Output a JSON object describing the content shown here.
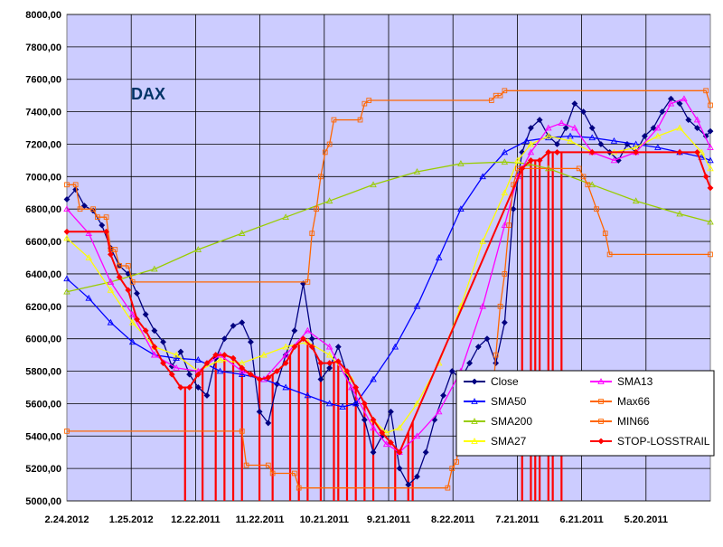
{
  "chart_data": {
    "type": "line",
    "title": "DAX",
    "ylim": [
      5000,
      8000
    ],
    "y_ticks": [
      "8000,00",
      "7800,00",
      "7600,00",
      "7400,00",
      "7200,00",
      "7000,00",
      "6800,00",
      "6600,00",
      "6400,00",
      "6200,00",
      "6000,00",
      "5800,00",
      "5600,00",
      "5400,00",
      "5200,00",
      "5000,00"
    ],
    "x_ticks": [
      "2.24.2012",
      "1.25.2012",
      "12.22.2011",
      "11.22.2011",
      "10.21.2011",
      "9.21.2011",
      "8.22.2011",
      "7.21.2011",
      "6.21.2011",
      "5.20.2011"
    ],
    "x_direction": "reversed (newest on the left)",
    "grid": true,
    "legend_position": "bottom-right",
    "colors": {
      "background": "#ffffff",
      "plot_bg": "#ccccff",
      "Close": "#000080",
      "SMA50": "#0000ff",
      "MIN66": "#ff6600",
      "SMA200": "#99cc00",
      "SMA27": "#ffff00",
      "Max66": "#ff6600",
      "STOP-LOSSTRAIL": "#ff0000",
      "SMA13": "#ff00ff"
    },
    "series": [
      {
        "name": "Close",
        "marker": "diamond",
        "points": [
          [
            0,
            6860
          ],
          [
            2,
            6920
          ],
          [
            4,
            6820
          ],
          [
            6,
            6790
          ],
          [
            8,
            6700
          ],
          [
            10,
            6560
          ],
          [
            12,
            6450
          ],
          [
            14,
            6400
          ],
          [
            16,
            6280
          ],
          [
            18,
            6150
          ],
          [
            20,
            6050
          ],
          [
            22,
            5980
          ],
          [
            24,
            5830
          ],
          [
            26,
            5920
          ],
          [
            28,
            5780
          ],
          [
            30,
            5700
          ],
          [
            32,
            5650
          ],
          [
            34,
            5880
          ],
          [
            36,
            6000
          ],
          [
            38,
            6080
          ],
          [
            40,
            6100
          ],
          [
            42,
            5980
          ],
          [
            44,
            5550
          ],
          [
            46,
            5480
          ],
          [
            48,
            5720
          ],
          [
            50,
            5900
          ],
          [
            52,
            6050
          ],
          [
            54,
            6340
          ],
          [
            56,
            6000
          ],
          [
            58,
            5750
          ],
          [
            60,
            5820
          ],
          [
            62,
            5950
          ],
          [
            64,
            5780
          ],
          [
            66,
            5600
          ],
          [
            68,
            5500
          ],
          [
            70,
            5300
          ],
          [
            72,
            5400
          ],
          [
            74,
            5550
          ],
          [
            76,
            5200
          ],
          [
            78,
            5100
          ],
          [
            80,
            5150
          ],
          [
            82,
            5300
          ],
          [
            84,
            5500
          ],
          [
            86,
            5650
          ],
          [
            88,
            5800
          ],
          [
            90,
            5750
          ],
          [
            92,
            5850
          ],
          [
            94,
            5950
          ],
          [
            96,
            6000
          ],
          [
            98,
            5850
          ],
          [
            100,
            6100
          ],
          [
            102,
            6800
          ],
          [
            104,
            7150
          ],
          [
            106,
            7300
          ],
          [
            108,
            7350
          ],
          [
            110,
            7250
          ],
          [
            112,
            7200
          ],
          [
            114,
            7300
          ],
          [
            116,
            7450
          ],
          [
            118,
            7400
          ],
          [
            120,
            7300
          ],
          [
            122,
            7200
          ],
          [
            124,
            7150
          ],
          [
            126,
            7100
          ],
          [
            128,
            7200
          ],
          [
            130,
            7150
          ],
          [
            132,
            7250
          ],
          [
            134,
            7300
          ],
          [
            136,
            7400
          ],
          [
            138,
            7480
          ],
          [
            140,
            7450
          ],
          [
            142,
            7350
          ],
          [
            144,
            7300
          ],
          [
            146,
            7250
          ],
          [
            147,
            7280
          ]
        ]
      },
      {
        "name": "SMA50",
        "marker": "triangle",
        "points": [
          [
            0,
            6370
          ],
          [
            5,
            6250
          ],
          [
            10,
            6100
          ],
          [
            15,
            5980
          ],
          [
            20,
            5900
          ],
          [
            25,
            5880
          ],
          [
            30,
            5870
          ],
          [
            35,
            5800
          ],
          [
            40,
            5780
          ],
          [
            45,
            5750
          ],
          [
            50,
            5700
          ],
          [
            55,
            5650
          ],
          [
            60,
            5600
          ],
          [
            63,
            5580
          ],
          [
            66,
            5600
          ],
          [
            70,
            5750
          ],
          [
            75,
            5950
          ],
          [
            80,
            6200
          ],
          [
            85,
            6500
          ],
          [
            90,
            6800
          ],
          [
            95,
            7000
          ],
          [
            100,
            7150
          ],
          [
            105,
            7220
          ],
          [
            110,
            7240
          ],
          [
            115,
            7250
          ],
          [
            120,
            7240
          ],
          [
            125,
            7220
          ],
          [
            130,
            7200
          ],
          [
            135,
            7180
          ],
          [
            140,
            7150
          ],
          [
            145,
            7120
          ],
          [
            147,
            7100
          ]
        ]
      },
      {
        "name": "SMA200",
        "marker": "triangle",
        "points": [
          [
            0,
            6290
          ],
          [
            10,
            6350
          ],
          [
            20,
            6430
          ],
          [
            30,
            6550
          ],
          [
            40,
            6650
          ],
          [
            50,
            6750
          ],
          [
            60,
            6850
          ],
          [
            70,
            6950
          ],
          [
            80,
            7030
          ],
          [
            90,
            7080
          ],
          [
            100,
            7090
          ],
          [
            105,
            7080
          ],
          [
            110,
            7050
          ],
          [
            120,
            6950
          ],
          [
            130,
            6850
          ],
          [
            140,
            6770
          ],
          [
            147,
            6720
          ]
        ]
      },
      {
        "name": "SMA27",
        "marker": "triangle",
        "points": [
          [
            0,
            6620
          ],
          [
            5,
            6500
          ],
          [
            10,
            6300
          ],
          [
            15,
            6100
          ],
          [
            20,
            5950
          ],
          [
            25,
            5900
          ],
          [
            30,
            5800
          ],
          [
            35,
            5870
          ],
          [
            40,
            5850
          ],
          [
            45,
            5900
          ],
          [
            50,
            5950
          ],
          [
            55,
            5980
          ],
          [
            60,
            5900
          ],
          [
            65,
            5750
          ],
          [
            70,
            5500
          ],
          [
            73,
            5420
          ],
          [
            76,
            5450
          ],
          [
            80,
            5600
          ],
          [
            85,
            5850
          ],
          [
            90,
            6200
          ],
          [
            95,
            6600
          ],
          [
            100,
            6900
          ],
          [
            103,
            7100
          ],
          [
            106,
            7200
          ],
          [
            110,
            7250
          ],
          [
            115,
            7220
          ],
          [
            120,
            7150
          ],
          [
            125,
            7150
          ],
          [
            130,
            7180
          ],
          [
            135,
            7250
          ],
          [
            140,
            7300
          ],
          [
            145,
            7150
          ],
          [
            147,
            7050
          ]
        ]
      },
      {
        "name": "SMA13",
        "marker": "triangle",
        "points": [
          [
            0,
            6800
          ],
          [
            5,
            6650
          ],
          [
            10,
            6350
          ],
          [
            15,
            6150
          ],
          [
            20,
            5900
          ],
          [
            25,
            5820
          ],
          [
            30,
            5800
          ],
          [
            35,
            5900
          ],
          [
            40,
            5800
          ],
          [
            45,
            5750
          ],
          [
            50,
            5900
          ],
          [
            55,
            6050
          ],
          [
            60,
            5950
          ],
          [
            65,
            5700
          ],
          [
            70,
            5450
          ],
          [
            73,
            5350
          ],
          [
            76,
            5300
          ],
          [
            80,
            5400
          ],
          [
            85,
            5550
          ],
          [
            90,
            5800
          ],
          [
            95,
            6200
          ],
          [
            100,
            6700
          ],
          [
            103,
            7000
          ],
          [
            106,
            7150
          ],
          [
            110,
            7300
          ],
          [
            113,
            7330
          ],
          [
            116,
            7300
          ],
          [
            120,
            7150
          ],
          [
            125,
            7100
          ],
          [
            130,
            7150
          ],
          [
            135,
            7300
          ],
          [
            138,
            7450
          ],
          [
            141,
            7480
          ],
          [
            144,
            7350
          ],
          [
            147,
            7180
          ]
        ]
      },
      {
        "name": "Max66",
        "marker": "square",
        "points": [
          [
            0,
            6950
          ],
          [
            2,
            6950
          ],
          [
            3,
            6800
          ],
          [
            6,
            6800
          ],
          [
            7,
            6750
          ],
          [
            9,
            6750
          ],
          [
            10,
            6550
          ],
          [
            11,
            6550
          ],
          [
            12,
            6450
          ],
          [
            14,
            6450
          ],
          [
            15,
            6350
          ],
          [
            55,
            6350
          ],
          [
            56,
            6650
          ],
          [
            57,
            6800
          ],
          [
            58,
            7000
          ],
          [
            59,
            7150
          ],
          [
            60,
            7200
          ],
          [
            61,
            7350
          ],
          [
            67,
            7350
          ],
          [
            68,
            7450
          ],
          [
            69,
            7470
          ],
          [
            97,
            7470
          ],
          [
            98,
            7500
          ],
          [
            99,
            7500
          ],
          [
            100,
            7530
          ],
          [
            146,
            7530
          ],
          [
            147,
            7440
          ]
        ]
      },
      {
        "name": "MIN66",
        "marker": "square",
        "points": [
          [
            0,
            5430
          ],
          [
            40,
            5430
          ],
          [
            41,
            5220
          ],
          [
            46,
            5220
          ],
          [
            47,
            5170
          ],
          [
            52,
            5170
          ],
          [
            53,
            5080
          ],
          [
            87,
            5080
          ],
          [
            88,
            5200
          ],
          [
            89,
            5240
          ],
          [
            90,
            5480
          ],
          [
            96,
            5480
          ],
          [
            97,
            5550
          ],
          [
            98,
            5900
          ],
          [
            99,
            6200
          ],
          [
            100,
            6400
          ],
          [
            101,
            6700
          ],
          [
            102,
            6950
          ],
          [
            103,
            7050
          ],
          [
            117,
            7050
          ],
          [
            118,
            7000
          ],
          [
            119,
            6950
          ],
          [
            121,
            6800
          ],
          [
            123,
            6650
          ],
          [
            124,
            6520
          ],
          [
            147,
            6520
          ]
        ]
      },
      {
        "name": "STOP-LOSSTRAIL",
        "marker": "diamond",
        "points": [
          [
            0,
            6660
          ],
          [
            9,
            6660
          ],
          [
            10,
            6520
          ],
          [
            12,
            6380
          ],
          [
            14,
            6300
          ],
          [
            16,
            6120
          ],
          [
            18,
            6050
          ],
          [
            20,
            5950
          ],
          [
            22,
            5850
          ],
          [
            24,
            5780
          ],
          [
            26,
            5700
          ],
          [
            28,
            5700
          ],
          [
            30,
            5780
          ],
          [
            32,
            5850
          ],
          [
            34,
            5900
          ],
          [
            36,
            5900
          ],
          [
            38,
            5880
          ],
          [
            40,
            5820
          ],
          [
            42,
            5780
          ],
          [
            44,
            5750
          ],
          [
            46,
            5760
          ],
          [
            48,
            5800
          ],
          [
            50,
            5850
          ],
          [
            52,
            5950
          ],
          [
            54,
            6000
          ],
          [
            56,
            5950
          ],
          [
            58,
            5850
          ],
          [
            60,
            5850
          ],
          [
            62,
            5860
          ],
          [
            64,
            5800
          ],
          [
            66,
            5700
          ],
          [
            68,
            5600
          ],
          [
            70,
            5500
          ],
          [
            72,
            5420
          ],
          [
            74,
            5360
          ],
          [
            76,
            5300
          ],
          [
            104,
            7050
          ],
          [
            106,
            7100
          ],
          [
            108,
            7100
          ],
          [
            110,
            7150
          ],
          [
            112,
            7150
          ],
          [
            120,
            7150
          ],
          [
            130,
            7150
          ],
          [
            140,
            7150
          ],
          [
            144,
            7150
          ],
          [
            146,
            7000
          ],
          [
            147,
            6930
          ]
        ]
      }
    ],
    "stop_marks": [
      27,
      31,
      34,
      36,
      38,
      40,
      44,
      47,
      51,
      53,
      55,
      58,
      61,
      62,
      64,
      66,
      68,
      70,
      75,
      78,
      79,
      104,
      106,
      107,
      108,
      110,
      111,
      113
    ]
  }
}
